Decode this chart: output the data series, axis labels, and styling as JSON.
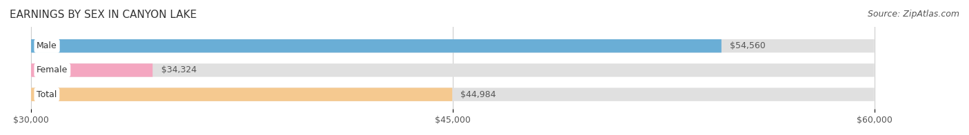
{
  "title": "EARNINGS BY SEX IN CANYON LAKE",
  "source": "Source: ZipAtlas.com",
  "categories": [
    "Male",
    "Female",
    "Total"
  ],
  "values": [
    54560,
    34324,
    44984
  ],
  "bar_colors": [
    "#6aaed6",
    "#f4a6c0",
    "#f5c990"
  ],
  "bar_bg_color": "#e8e8e8",
  "label_bg_color": "#ffffff",
  "xmin": 30000,
  "xmax": 60000,
  "xticks": [
    30000,
    45000,
    60000
  ],
  "xtick_labels": [
    "$30,000",
    "$45,000",
    "$60,000"
  ],
  "value_labels": [
    "$54,560",
    "$34,324",
    "$44,984"
  ],
  "title_fontsize": 11,
  "source_fontsize": 9,
  "bar_label_fontsize": 9,
  "tick_fontsize": 9,
  "bar_height": 0.55,
  "background_color": "#ffffff",
  "title_color": "#333333",
  "source_color": "#555555",
  "value_text_color": "#555555"
}
